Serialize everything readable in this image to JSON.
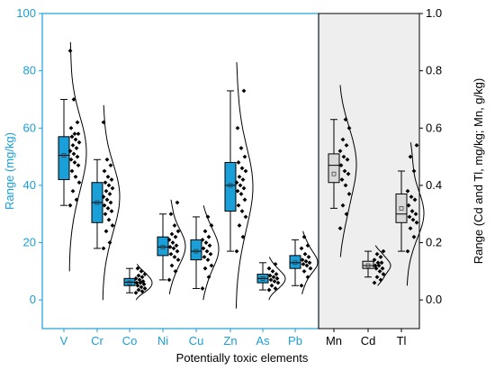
{
  "chart_data": {
    "type": "box",
    "xlabel": "Potentially toxic elements",
    "ylabel_left": "Range (mg/kg)",
    "ylabel_right": "Range (Cd and Tl, mg/kg; Mn, g/kg)",
    "left_axis": {
      "ylim": [
        -10,
        100
      ],
      "ticks": [
        0,
        20,
        40,
        60,
        80,
        100
      ]
    },
    "right_axis": {
      "ylim": [
        -0.1,
        1.0
      ],
      "ticks": [
        "0.0",
        "0.2",
        "0.4",
        "0.6",
        "0.8",
        "1.0"
      ]
    },
    "colors": {
      "left_axis": "#1a9fd8",
      "left_box": "#1a9fd8",
      "right_box": "#d9d9d9",
      "right_panel_bg": "#eeeeee",
      "points": "#000000"
    },
    "groups": [
      {
        "label": "V",
        "axis": "left",
        "whisker_low": 33,
        "q1": 42,
        "median": 50.5,
        "mean": 50.5,
        "q3": 57,
        "whisker_high": 70,
        "points": [
          33,
          35,
          38,
          41,
          43,
          45,
          47,
          48,
          49,
          50,
          51,
          52,
          53,
          54,
          55,
          56,
          57,
          58,
          58,
          60,
          62,
          70,
          87
        ],
        "density_top": 90,
        "density_bottom": 10
      },
      {
        "label": "Cr",
        "axis": "left",
        "whisker_low": 18,
        "q1": 27,
        "median": 34,
        "mean": 34,
        "q3": 41,
        "whisker_high": 49,
        "points": [
          18,
          20,
          24,
          26,
          28,
          30,
          31,
          32,
          33,
          34,
          35,
          36,
          37,
          38,
          39,
          40,
          41,
          42,
          43,
          45,
          47,
          49,
          62
        ],
        "density_top": 68,
        "density_bottom": 0
      },
      {
        "label": "Co",
        "axis": "left",
        "whisker_low": 2.5,
        "q1": 5,
        "median": 6.2,
        "mean": 6,
        "q3": 7.5,
        "whisker_high": 11,
        "points": [
          2.5,
          3,
          3.5,
          4,
          4.5,
          5,
          5.5,
          6,
          6,
          6.5,
          7,
          7.5,
          8,
          8.5,
          9,
          10,
          11
        ],
        "density_top": 12.5,
        "density_bottom": 0
      },
      {
        "label": "Ni",
        "axis": "left",
        "whisker_low": 7,
        "q1": 15.5,
        "median": 18.5,
        "mean": 18.5,
        "q3": 22,
        "whisker_high": 30,
        "points": [
          7,
          10,
          12,
          14,
          15,
          16,
          17,
          18,
          18.5,
          19,
          20,
          21,
          22,
          23,
          24,
          26,
          30,
          34
        ],
        "density_top": 35,
        "density_bottom": 2
      },
      {
        "label": "Cu",
        "axis": "left",
        "whisker_low": 4,
        "q1": 14,
        "median": 17,
        "mean": 17,
        "q3": 21,
        "whisker_high": 29,
        "points": [
          4,
          8,
          11,
          12,
          14,
          15,
          16,
          17,
          18,
          19,
          20,
          21,
          22,
          24,
          26,
          29
        ],
        "density_top": 33,
        "density_bottom": 0
      },
      {
        "label": "Zn",
        "axis": "left",
        "whisker_low": 17,
        "q1": 31,
        "median": 40,
        "mean": 40,
        "q3": 48,
        "whisker_high": 73,
        "points": [
          17,
          22,
          26,
          29,
          31,
          33,
          35,
          37,
          38,
          39,
          40,
          41,
          42,
          43,
          45,
          46,
          48,
          50,
          53,
          60,
          73
        ],
        "density_top": 83,
        "density_bottom": -3
      },
      {
        "label": "As",
        "axis": "left",
        "whisker_low": 3.5,
        "q1": 6,
        "median": 7.5,
        "mean": 7.5,
        "q3": 9,
        "whisker_high": 13,
        "points": [
          3.5,
          4,
          5,
          6,
          6.5,
          7,
          7.5,
          8,
          8.5,
          9,
          10,
          11,
          12.5
        ],
        "density_top": 15,
        "density_bottom": 0
      },
      {
        "label": "Pb",
        "axis": "left",
        "whisker_low": 5,
        "q1": 11,
        "median": 13,
        "mean": 13,
        "q3": 15.5,
        "whisker_high": 21,
        "points": [
          5,
          8,
          10,
          11,
          12,
          12.5,
          13,
          13.5,
          14,
          15,
          16,
          18,
          19,
          22
        ],
        "density_top": 24,
        "density_bottom": 2
      },
      {
        "label": "Mn",
        "axis": "right",
        "whisker_low": 0.32,
        "q1": 0.41,
        "median": 0.47,
        "mean": 0.44,
        "q3": 0.51,
        "whisker_high": 0.63,
        "points": [
          0.25,
          0.3,
          0.33,
          0.37,
          0.4,
          0.42,
          0.44,
          0.45,
          0.47,
          0.49,
          0.5,
          0.52,
          0.54,
          0.56,
          0.6,
          0.63
        ],
        "density_top": 0.75,
        "density_bottom": 0.15
      },
      {
        "label": "Cd",
        "axis": "right",
        "whisker_low": 0.08,
        "q1": 0.11,
        "median": 0.12,
        "mean": 0.12,
        "q3": 0.135,
        "whisker_high": 0.17,
        "points": [
          0.06,
          0.07,
          0.08,
          0.09,
          0.1,
          0.11,
          0.11,
          0.12,
          0.12,
          0.13,
          0.13,
          0.14,
          0.15,
          0.16,
          0.17
        ],
        "density_top": 0.19,
        "density_bottom": 0.05
      },
      {
        "label": "Tl",
        "axis": "right",
        "whisker_low": 0.17,
        "q1": 0.27,
        "median": 0.3,
        "mean": 0.32,
        "q3": 0.37,
        "whisker_high": 0.45,
        "points": [
          0.17,
          0.22,
          0.25,
          0.27,
          0.28,
          0.29,
          0.3,
          0.31,
          0.33,
          0.35,
          0.36,
          0.38,
          0.45,
          0.5,
          0.54
        ],
        "density_top": 0.55,
        "density_bottom": 0.05
      }
    ]
  }
}
